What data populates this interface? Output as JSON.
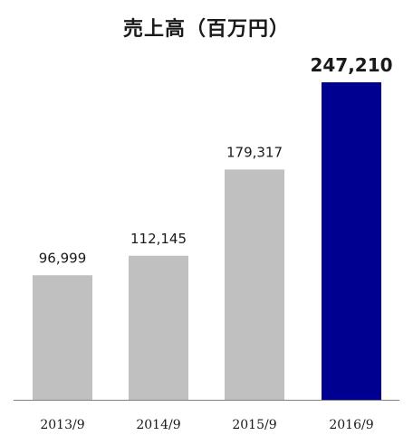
{
  "chart_data": {
    "type": "bar",
    "title": "売上高（百万円）",
    "categories": [
      "2013/9",
      "2014/9",
      "2015/9",
      "2016/9"
    ],
    "values": [
      96999,
      112145,
      179317,
      247210
    ],
    "value_labels": [
      "96,999",
      "112,145",
      "179,317",
      "247,210"
    ],
    "ylim": [
      0,
      247210
    ],
    "grid": false,
    "legend": "none",
    "highlight_index": 3,
    "colors": {
      "default_bar": "#c0c0c0",
      "highlight_bar": "#000090",
      "axis": "#7f7f7f",
      "text": "#1a1a1a"
    }
  }
}
